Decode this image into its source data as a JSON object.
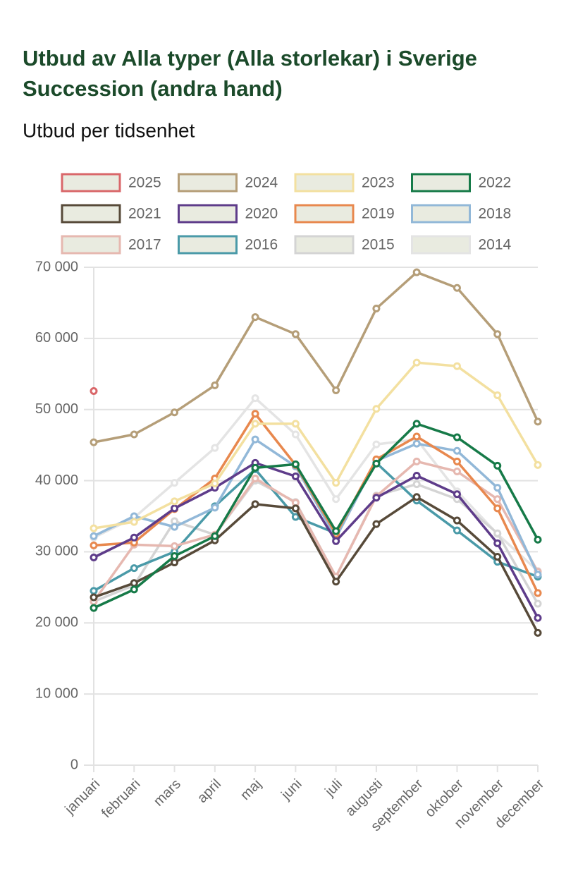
{
  "chart_data": {
    "type": "line",
    "title": "Utbud av Alla typer (Alla storlekar) i Sverige",
    "subtitle": "Succession (andra hand)",
    "y_label": "Utbud per tidsenhet",
    "categories": [
      "januari",
      "februari",
      "mars",
      "april",
      "maj",
      "juni",
      "juli",
      "augusti",
      "september",
      "oktober",
      "november",
      "december"
    ],
    "ylim": [
      0,
      70000
    ],
    "yticks": [
      0,
      {
        "value": 10000,
        "label": "10 000"
      },
      {
        "value": 20000,
        "label": "20 000"
      },
      {
        "value": 30000,
        "label": "30 000"
      },
      {
        "value": 40000,
        "label": "40 000"
      },
      {
        "value": 50000,
        "label": "50 000"
      },
      {
        "value": 60000,
        "label": "60 000"
      },
      {
        "value": 70000,
        "label": "70 000"
      }
    ],
    "grid": true,
    "series": [
      {
        "name": "2025",
        "color": "#d9676a",
        "values": [
          52600,
          null,
          null,
          null,
          null,
          null,
          null,
          null,
          null,
          null,
          null,
          null
        ]
      },
      {
        "name": "2024",
        "color": "#b59e78",
        "values": [
          45400,
          46500,
          49600,
          53400,
          63000,
          60600,
          52700,
          64200,
          69300,
          67100,
          60600,
          48300
        ]
      },
      {
        "name": "2023",
        "color": "#f3e0a0",
        "values": [
          33300,
          34200,
          37100,
          39600,
          48000,
          48000,
          39700,
          50100,
          56600,
          56100,
          52000,
          42200
        ]
      },
      {
        "name": "2022",
        "color": "#167a48",
        "values": [
          22100,
          24700,
          29400,
          32200,
          41800,
          42300,
          32900,
          42400,
          48000,
          46100,
          42100,
          31700
        ]
      },
      {
        "name": "2021",
        "color": "#574a39",
        "values": [
          23600,
          25600,
          28500,
          31600,
          36700,
          36100,
          25800,
          33900,
          37700,
          34400,
          29300,
          18600
        ]
      },
      {
        "name": "2020",
        "color": "#5e3c8a",
        "values": [
          29200,
          32000,
          36100,
          39000,
          42500,
          40600,
          31500,
          37600,
          40700,
          38100,
          31200,
          20700
        ]
      },
      {
        "name": "2019",
        "color": "#e8884e",
        "values": [
          30900,
          31300,
          36000,
          40300,
          49400,
          42200,
          32500,
          43000,
          46200,
          42700,
          36100,
          24200
        ]
      },
      {
        "name": "2018",
        "color": "#92b8d8",
        "values": [
          32200,
          35000,
          33500,
          36200,
          45800,
          42000,
          32000,
          42800,
          45200,
          44200,
          39000,
          26800
        ]
      },
      {
        "name": "2017",
        "color": "#e6b8b0",
        "values": [
          23000,
          31000,
          30800,
          32400,
          40300,
          36900,
          26500,
          37800,
          42700,
          41300,
          37400,
          27200
        ]
      },
      {
        "name": "2016",
        "color": "#4a9aa8",
        "values": [
          24500,
          27700,
          30000,
          36400,
          41600,
          34900,
          32600,
          42500,
          37200,
          33000,
          28600,
          26500
        ]
      },
      {
        "name": "2015",
        "color": "#d4d4d4",
        "values": [
          23000,
          25300,
          34300,
          32400,
          40000,
          37000,
          26500,
          37900,
          39500,
          37400,
          32600,
          22700
        ]
      },
      {
        "name": "2014",
        "color": "#e4e4e4",
        "values": [
          32000,
          34800,
          39700,
          44600,
          51600,
          46500,
          37400,
          45100,
          45800,
          38500,
          32500,
          27300
        ]
      }
    ]
  }
}
